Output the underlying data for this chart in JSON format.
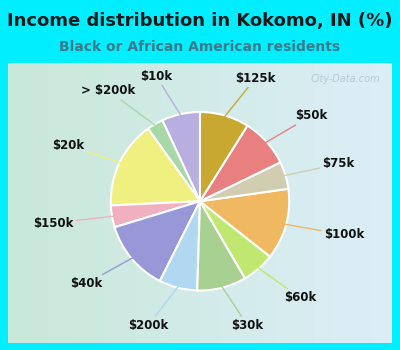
{
  "title": "Income distribution in Kokomo, IN (%)",
  "subtitle": "Black or African American residents",
  "bg_color": "#00eeff",
  "chart_bg_grad_left": "#d4ede4",
  "chart_bg_grad_right": "#e8f8f8",
  "watermark": "City-Data.com",
  "labels": [
    "$10k",
    "> $200k",
    "$20k",
    "$150k",
    "$40k",
    "$200k",
    "$30k",
    "$60k",
    "$100k",
    "$75k",
    "$50k",
    "$125k"
  ],
  "values": [
    7,
    3,
    16,
    4,
    13,
    7,
    9,
    6,
    13,
    5,
    9,
    9
  ],
  "colors": [
    "#b8aee0",
    "#a8d8a8",
    "#f0f080",
    "#f0b0c0",
    "#9898d8",
    "#b0d8f0",
    "#a8d090",
    "#c0e870",
    "#f0b860",
    "#d0cdb0",
    "#e88080",
    "#c8a830"
  ],
  "title_color": "#1a1a1a",
  "subtitle_color": "#3a7a8a",
  "title_fontsize": 13,
  "subtitle_fontsize": 10,
  "label_fontsize": 8.5,
  "startangle": 90
}
